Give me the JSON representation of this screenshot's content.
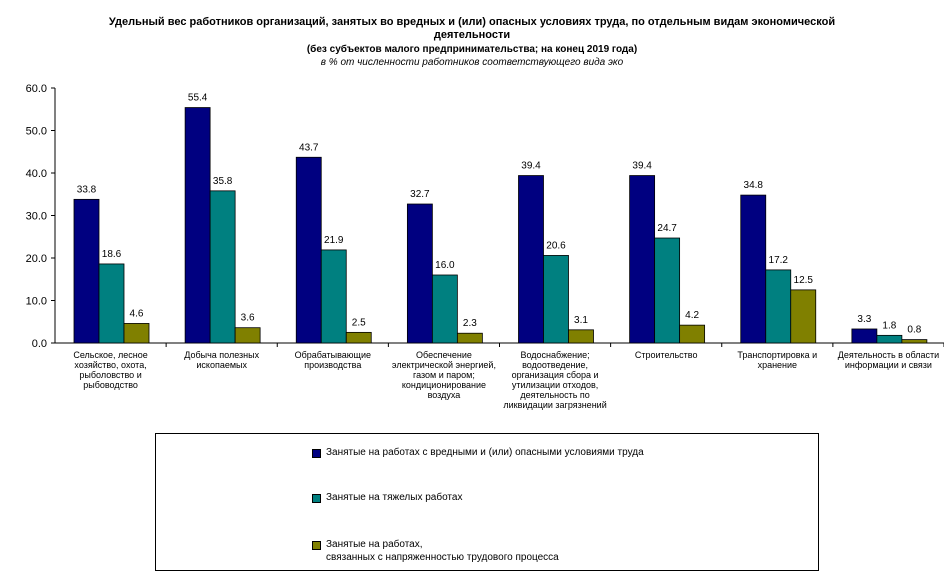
{
  "header": {
    "title_line1": "Удельный вес работников организаций, занятых во вредных и (или) опасных условиях труда, по отдельным видам экономической деятельности",
    "title_line2": "(без субъектов малого предпринимательства;  на конец 2019 года)",
    "title_line3": "в % от численности работников соответствующего вида эко"
  },
  "chart_data": {
    "type": "bar",
    "title": "Удельный вес работников организаций, занятых во вредных и (или) опасных условиях труда, по отдельным видам экономической деятельности",
    "subtitle": "(без субъектов малого предпринимательства;  на конец 2019 года)",
    "ylabel": "в % от численности работников соответствующего вида эко",
    "xlabel": "",
    "ylim": [
      0,
      60
    ],
    "yticks": [
      "0.0",
      "10.0",
      "20.0",
      "30.0",
      "40.0",
      "50.0",
      "60.0"
    ],
    "grid": false,
    "legend_position": "bottom",
    "categories": [
      "Сельское, лесное хозяйство, охота, рыболовство и рыбоводство",
      "Добыча полезных ископаемых",
      "Обрабатывающие производства",
      "Обеспечение электрической энергией, газом и паром; кондиционирование воздуха",
      "Водоснабжение; водоотведение, организация сбора и утилизации отходов, деятельность по ликвидации загрязнений",
      "Строительство",
      "Транспортировка и хранение",
      "Деятельность в области информации и связи"
    ],
    "category_labels_display": [
      "Сельское, лесное\nхозяйство, охота,\nрыболовство и\nрыбоводство",
      "Добыча полезных\nископаемых",
      "Обрабатывающие\nпроизводства",
      "Обеспечение\nэлектрической энергией,\nгазом и паром;\nкондиционирование\nвоздуха",
      "Водоснабжение;\nводоотведение,\nорганизация сбора и\nутилизации отходов,\nдеятельность по\nликвидации загрязнений",
      "Строительство",
      "Транспортировка и\nхранение",
      "Деятельность в области\nинформации и связи"
    ],
    "series": [
      {
        "name": "Занятые на работах с вредными и (или) опасными  условиями труда",
        "color": "#000080",
        "values": [
          33.8,
          55.4,
          43.7,
          32.7,
          39.4,
          39.4,
          34.8,
          3.3
        ],
        "labels": [
          "33.8",
          "55.4",
          "43.7",
          "32.7",
          "39.4",
          "39.4",
          "34.8",
          "3.3"
        ]
      },
      {
        "name": "Занятые на тяжелых работах",
        "color": "#008080",
        "values": [
          18.6,
          35.8,
          21.9,
          16.0,
          20.6,
          24.7,
          17.2,
          1.8
        ],
        "labels": [
          "18.6",
          "35.8",
          "21.9",
          "16.0",
          "20.6",
          "24.7",
          "17.2",
          "1.8"
        ]
      },
      {
        "name": "Занятые на работах,\nсвязанных с напряженностью трудового процесса",
        "color": "#808000",
        "values": [
          4.6,
          3.6,
          2.5,
          2.3,
          3.1,
          4.2,
          12.5,
          0.8
        ],
        "labels": [
          "4.6",
          "3.6",
          "2.5",
          "2.3",
          "3.1",
          "4.2",
          "12.5",
          "0.8"
        ]
      }
    ]
  }
}
